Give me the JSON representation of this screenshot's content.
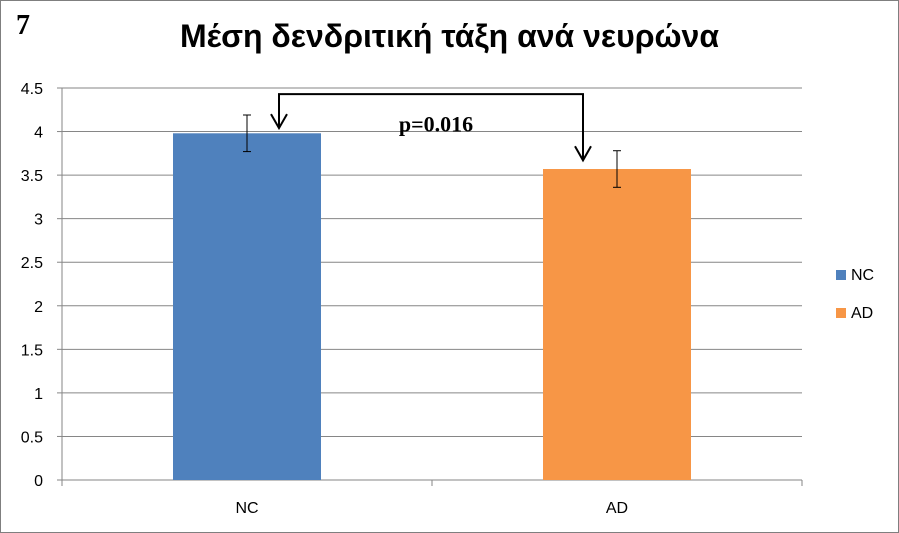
{
  "panel_label": "7",
  "chart_data": {
    "type": "bar",
    "title": "Μέση δενδριτική τάξη ανά νευρώνα",
    "categories": [
      "NC",
      "AD"
    ],
    "values": [
      3.98,
      3.57
    ],
    "errors": [
      0.21,
      0.21
    ],
    "colors": [
      "#4f81bd",
      "#f79646"
    ],
    "ylim": [
      0,
      4.5
    ],
    "yticks": [
      "0",
      "0.5",
      "1",
      "1.5",
      "2",
      "2.5",
      "3",
      "3.5",
      "4",
      "4.5"
    ],
    "xlabel": "",
    "ylabel": "",
    "grid": true,
    "legend": {
      "position": "right",
      "entries": [
        {
          "label": "NC",
          "color": "#4f81bd"
        },
        {
          "label": "AD",
          "color": "#f79646"
        }
      ]
    },
    "annotation": "p=0.016"
  }
}
